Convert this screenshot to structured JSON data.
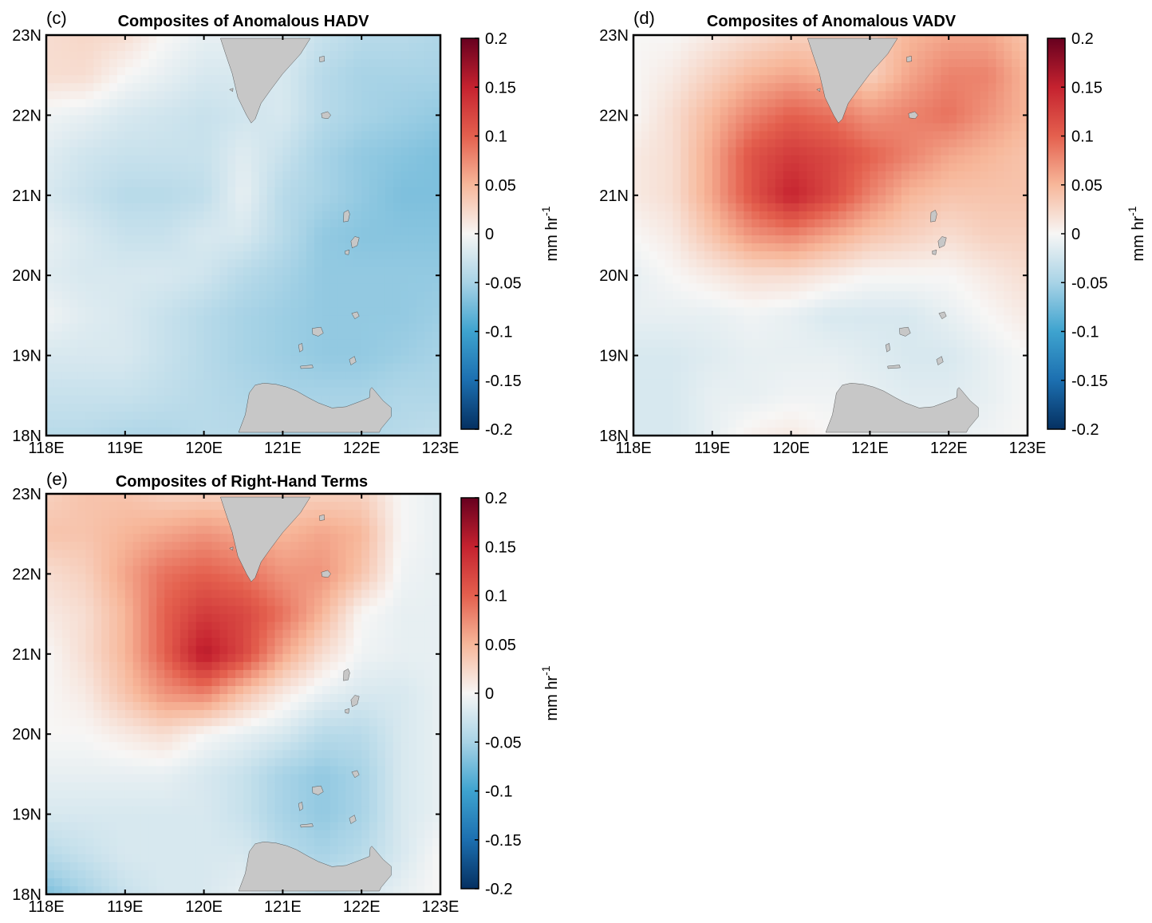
{
  "chart_data": [
    {
      "type": "heatmap",
      "panel_label": "(c)",
      "title": "Composites of Anomalous HADV",
      "x_ticks": [
        "118E",
        "119E",
        "120E",
        "121E",
        "122E",
        "123E"
      ],
      "y_ticks": [
        "23N",
        "22N",
        "21N",
        "20N",
        "19N",
        "18N"
      ],
      "xlim": [
        118,
        123
      ],
      "ylim": [
        18,
        23
      ],
      "colorbar": {
        "ticks": [
          "0.2",
          "0.15",
          "0.1",
          "0.05",
          "0",
          "-0.05",
          "-0.1",
          "-0.15",
          "-0.2"
        ],
        "range": [
          -0.2,
          0.2
        ],
        "label": "mm hr",
        "label_sup": "-1"
      },
      "field": {
        "lon": [
          118,
          118.5,
          119,
          119.5,
          120,
          120.5,
          121,
          121.5,
          122,
          122.5,
          123
        ],
        "lat": [
          23,
          22.5,
          22,
          21.5,
          21,
          20.5,
          20,
          19.5,
          19,
          18.5,
          18
        ],
        "values": [
          [
            0.02,
            0.025,
            0.02,
            0.0,
            -0.01,
            -0.01,
            -0.015,
            -0.03,
            -0.04,
            -0.04,
            -0.045
          ],
          [
            0.02,
            0.02,
            0.0,
            -0.01,
            -0.02,
            -0.02,
            -0.02,
            -0.04,
            -0.05,
            -0.05,
            -0.05
          ],
          [
            -0.005,
            -0.01,
            -0.02,
            -0.025,
            -0.03,
            -0.025,
            -0.02,
            -0.04,
            -0.05,
            -0.055,
            -0.06
          ],
          [
            -0.015,
            -0.025,
            -0.03,
            -0.03,
            -0.03,
            -0.015,
            -0.03,
            -0.05,
            -0.06,
            -0.065,
            -0.07
          ],
          [
            -0.02,
            -0.03,
            -0.04,
            -0.04,
            -0.035,
            -0.01,
            -0.04,
            -0.05,
            -0.06,
            -0.07,
            -0.07
          ],
          [
            -0.01,
            -0.02,
            -0.03,
            -0.03,
            -0.02,
            -0.02,
            -0.04,
            -0.06,
            -0.065,
            -0.065,
            -0.065
          ],
          [
            -0.015,
            -0.02,
            -0.02,
            -0.02,
            -0.025,
            -0.04,
            -0.05,
            -0.06,
            -0.06,
            -0.06,
            -0.06
          ],
          [
            -0.005,
            -0.015,
            -0.02,
            -0.03,
            -0.04,
            -0.05,
            -0.055,
            -0.06,
            -0.06,
            -0.06,
            -0.055
          ],
          [
            -0.02,
            -0.02,
            -0.02,
            -0.03,
            -0.04,
            -0.05,
            -0.055,
            -0.06,
            -0.06,
            -0.055,
            -0.05
          ],
          [
            -0.03,
            -0.03,
            -0.03,
            -0.035,
            -0.04,
            -0.045,
            -0.05,
            -0.05,
            -0.05,
            -0.045,
            -0.045
          ],
          [
            -0.04,
            -0.04,
            -0.045,
            -0.045,
            -0.04,
            -0.04,
            -0.045,
            -0.045,
            -0.045,
            -0.04,
            -0.035
          ]
        ]
      }
    },
    {
      "type": "heatmap",
      "panel_label": "(d)",
      "title": "Composites of Anomalous VADV",
      "x_ticks": [
        "118E",
        "119E",
        "120E",
        "121E",
        "122E",
        "123E"
      ],
      "y_ticks": [
        "23N",
        "22N",
        "21N",
        "20N",
        "19N",
        "18N"
      ],
      "xlim": [
        118,
        123
      ],
      "ylim": [
        18,
        23
      ],
      "colorbar": {
        "ticks": [
          "0.2",
          "0.15",
          "0.1",
          "0.05",
          "0",
          "-0.05",
          "-0.1",
          "-0.15",
          "-0.2"
        ],
        "range": [
          -0.2,
          0.2
        ],
        "label": "mm hr",
        "label_sup": "-1"
      },
      "field": {
        "lon": [
          118,
          118.5,
          119,
          119.5,
          120,
          120.5,
          121,
          121.5,
          122,
          122.5,
          123
        ],
        "lat": [
          23,
          22.5,
          22,
          21.5,
          21,
          20.5,
          20,
          19.5,
          19,
          18.5,
          18
        ],
        "values": [
          [
            0.0,
            0.0,
            0.01,
            0.02,
            0.03,
            0.03,
            0.03,
            0.05,
            0.06,
            0.06,
            0.04
          ],
          [
            0.0,
            0.01,
            0.03,
            0.05,
            0.06,
            0.05,
            0.03,
            0.06,
            0.08,
            0.08,
            0.05
          ],
          [
            0.0,
            0.02,
            0.05,
            0.08,
            0.1,
            0.09,
            0.07,
            0.08,
            0.09,
            0.07,
            0.05
          ],
          [
            0.01,
            0.02,
            0.06,
            0.11,
            0.13,
            0.12,
            0.1,
            0.08,
            0.06,
            0.05,
            0.04
          ],
          [
            0.01,
            0.02,
            0.06,
            0.11,
            0.15,
            0.12,
            0.08,
            0.05,
            0.04,
            0.04,
            0.04
          ],
          [
            0.0,
            0.01,
            0.04,
            0.07,
            0.08,
            0.06,
            0.04,
            0.03,
            0.02,
            0.03,
            0.03
          ],
          [
            -0.01,
            0.0,
            0.01,
            0.02,
            0.02,
            0.01,
            0.0,
            0.0,
            0.0,
            0.01,
            0.02
          ],
          [
            -0.01,
            -0.01,
            -0.01,
            -0.005,
            -0.01,
            -0.02,
            -0.02,
            -0.02,
            -0.01,
            0.0,
            0.01
          ],
          [
            -0.02,
            -0.02,
            -0.015,
            -0.01,
            -0.01,
            -0.01,
            -0.015,
            -0.02,
            -0.02,
            -0.01,
            0.0
          ],
          [
            -0.02,
            -0.02,
            -0.01,
            -0.01,
            -0.005,
            -0.005,
            -0.01,
            -0.015,
            -0.015,
            -0.01,
            0.0
          ],
          [
            -0.02,
            -0.02,
            -0.01,
            0.005,
            0.01,
            0.0,
            -0.005,
            -0.01,
            -0.01,
            -0.005,
            0.0
          ]
        ]
      }
    },
    {
      "type": "heatmap",
      "panel_label": "(e)",
      "title": "Composites of Right-Hand Terms",
      "x_ticks": [
        "118E",
        "119E",
        "120E",
        "121E",
        "122E",
        "123E"
      ],
      "y_ticks": [
        "23N",
        "22N",
        "21N",
        "20N",
        "19N",
        "18N"
      ],
      "xlim": [
        118,
        123
      ],
      "ylim": [
        18,
        23
      ],
      "colorbar": {
        "ticks": [
          "0.2",
          "0.15",
          "0.1",
          "0.05",
          "0",
          "-0.05",
          "-0.1",
          "-0.15",
          "-0.2"
        ],
        "range": [
          -0.2,
          0.2
        ],
        "label": "mm hr",
        "label_sup": "-1"
      },
      "field": {
        "lon": [
          118,
          118.5,
          119,
          119.5,
          120,
          120.5,
          121,
          121.5,
          122,
          122.5,
          123
        ],
        "lat": [
          23,
          22.5,
          22,
          21.5,
          21,
          20.5,
          20,
          19.5,
          19,
          18.5,
          18
        ],
        "values": [
          [
            0.03,
            0.04,
            0.04,
            0.03,
            0.03,
            0.03,
            0.03,
            0.03,
            0.03,
            0.0,
            -0.01
          ],
          [
            0.04,
            0.04,
            0.05,
            0.06,
            0.07,
            0.06,
            0.05,
            0.06,
            0.05,
            0.0,
            -0.01
          ],
          [
            0.02,
            0.03,
            0.06,
            0.09,
            0.1,
            0.09,
            0.07,
            0.07,
            0.04,
            -0.005,
            -0.01
          ],
          [
            0.01,
            0.02,
            0.05,
            0.1,
            0.13,
            0.12,
            0.09,
            0.05,
            0.0,
            -0.01,
            -0.01
          ],
          [
            0.0,
            0.02,
            0.05,
            0.1,
            0.16,
            0.12,
            0.06,
            0.02,
            -0.005,
            -0.01,
            -0.01
          ],
          [
            0.0,
            0.01,
            0.04,
            0.07,
            0.08,
            0.04,
            0.01,
            -0.01,
            -0.02,
            -0.02,
            -0.01
          ],
          [
            0.0,
            0.0,
            0.01,
            0.02,
            0.0,
            -0.01,
            -0.02,
            -0.04,
            -0.04,
            -0.02,
            -0.01
          ],
          [
            -0.01,
            -0.01,
            -0.01,
            -0.01,
            -0.02,
            -0.03,
            -0.05,
            -0.06,
            -0.05,
            -0.02,
            -0.01
          ],
          [
            -0.02,
            -0.02,
            -0.02,
            -0.02,
            -0.02,
            -0.03,
            -0.05,
            -0.06,
            -0.05,
            -0.02,
            -0.01
          ],
          [
            -0.04,
            -0.03,
            -0.02,
            -0.02,
            -0.02,
            -0.02,
            -0.04,
            -0.05,
            -0.04,
            -0.02,
            0.0
          ],
          [
            -0.07,
            -0.05,
            -0.03,
            -0.02,
            -0.02,
            -0.01,
            -0.02,
            -0.03,
            -0.02,
            -0.01,
            0.0
          ]
        ]
      }
    }
  ]
}
